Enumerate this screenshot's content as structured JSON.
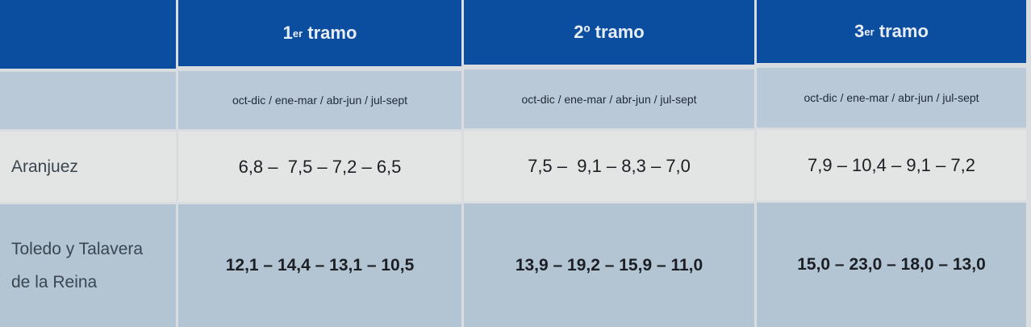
{
  "header": {
    "col1": {
      "num": "1",
      "sup": "er",
      "label": " tramo"
    },
    "col2": {
      "label": "2º tramo"
    },
    "col3": {
      "num": "3",
      "sup": "er",
      "label": " tramo"
    }
  },
  "periods": [
    "oct-dic / ene-mar / abr-jun / jul-sept",
    "oct-dic / ene-mar / abr-jun / jul-sept",
    "oct-dic / ene-mar / abr-jun / jul-sept"
  ],
  "rows": [
    {
      "label": "Aranjuez",
      "values": [
        "6,8 –  7,5 – 7,2 – 6,5",
        "7,5 –  9,1 – 8,3 – 7,0",
        "7,9 – 10,4 – 9,1 – 7,2"
      ]
    },
    {
      "label": "Toledo y Talavera de la Reina",
      "values": [
        "12,1 – 14,4 – 13,1 – 10,5",
        "13,9 – 19,2 – 15,9 – 11,0",
        "15,0 – 23,0 – 18,0 – 13,0"
      ]
    }
  ],
  "colors": {
    "header": "#0b4d9e",
    "subheader": "#b9c9d7",
    "row_light": "#e3e5e5",
    "row_blue": "#b3c4d3"
  }
}
